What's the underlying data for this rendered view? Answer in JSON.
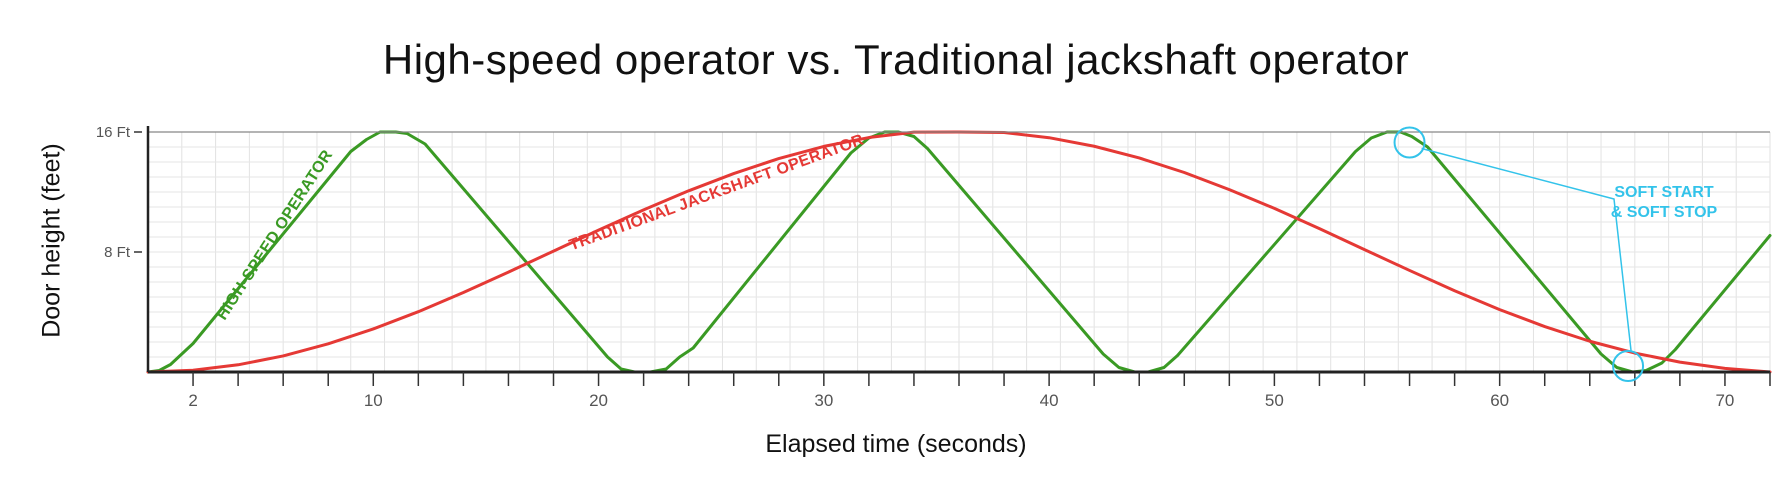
{
  "chart_data": {
    "type": "line",
    "title": "High-speed operator vs. Traditional jackshaft operator",
    "xlabel": "Elapsed time (seconds)",
    "ylabel": "Door height (feet)",
    "xlim": [
      0,
      72
    ],
    "ylim": [
      0,
      16
    ],
    "x_ticks": [
      2,
      10,
      20,
      30,
      40,
      50,
      60,
      70
    ],
    "y_ticks": [
      {
        "value": 8,
        "label": "8 Ft"
      },
      {
        "value": 16,
        "label": "16 Ft"
      }
    ],
    "grid": true,
    "series": [
      {
        "name": "HIGH-SPEED OPERATOR",
        "color": "#3a9a24",
        "x": [
          0,
          0.5,
          1,
          1.5,
          2,
          9,
          9.7,
          10.3,
          11,
          11.5,
          12.3,
          20.4,
          21,
          21.6,
          22.3,
          23,
          23.6,
          24.2,
          31.2,
          32,
          32.7,
          33.3,
          34,
          34.6,
          42.4,
          43.1,
          43.8,
          44.4,
          45.1,
          45.7,
          53.6,
          54.3,
          55,
          55.6,
          56.1,
          56.8,
          64.5,
          65.2,
          65.9,
          66.5,
          67.2,
          67.8,
          72
        ],
        "y": [
          0,
          0.1,
          0.5,
          1.2,
          1.9,
          14.7,
          15.5,
          16,
          16,
          15.9,
          15.2,
          1,
          0.2,
          0,
          0,
          0.2,
          1,
          1.6,
          14.6,
          15.6,
          16,
          16,
          15.7,
          14.9,
          1.2,
          0.3,
          0,
          0,
          0.3,
          1.1,
          14.7,
          15.6,
          16,
          16,
          15.7,
          15,
          1.2,
          0.3,
          0,
          0.1,
          0.6,
          1.5,
          9.1
        ]
      },
      {
        "name": "TRADITIONAL JACKSHAFT OPERATOR",
        "color": "#e53935",
        "x": [
          0,
          2,
          4,
          6,
          8,
          10,
          12,
          14,
          16,
          18,
          20,
          22,
          24,
          26,
          28,
          30,
          32,
          34,
          36,
          38,
          40,
          42,
          44,
          46,
          48,
          50,
          52,
          54,
          56,
          58,
          60,
          62,
          64,
          66,
          68,
          70,
          72
        ],
        "y": [
          0,
          0.12,
          0.48,
          1.07,
          1.88,
          2.87,
          4.02,
          5.3,
          6.66,
          8.06,
          9.46,
          10.81,
          12.08,
          13.23,
          14.23,
          15.04,
          15.63,
          15.99,
          16,
          15.97,
          15.62,
          15.05,
          14.27,
          13.3,
          12.16,
          10.91,
          9.56,
          8.16,
          6.77,
          5.42,
          4.16,
          3.03,
          2.05,
          1.26,
          0.66,
          0.24,
          0
        ]
      }
    ],
    "annotation": {
      "line1": "SOFT START",
      "line2": "& SOFT STOP",
      "color": "#33c3ea",
      "points": [
        {
          "x": 56,
          "y": 15.3
        },
        {
          "x": 65.7,
          "y": 0.4
        }
      ]
    }
  }
}
